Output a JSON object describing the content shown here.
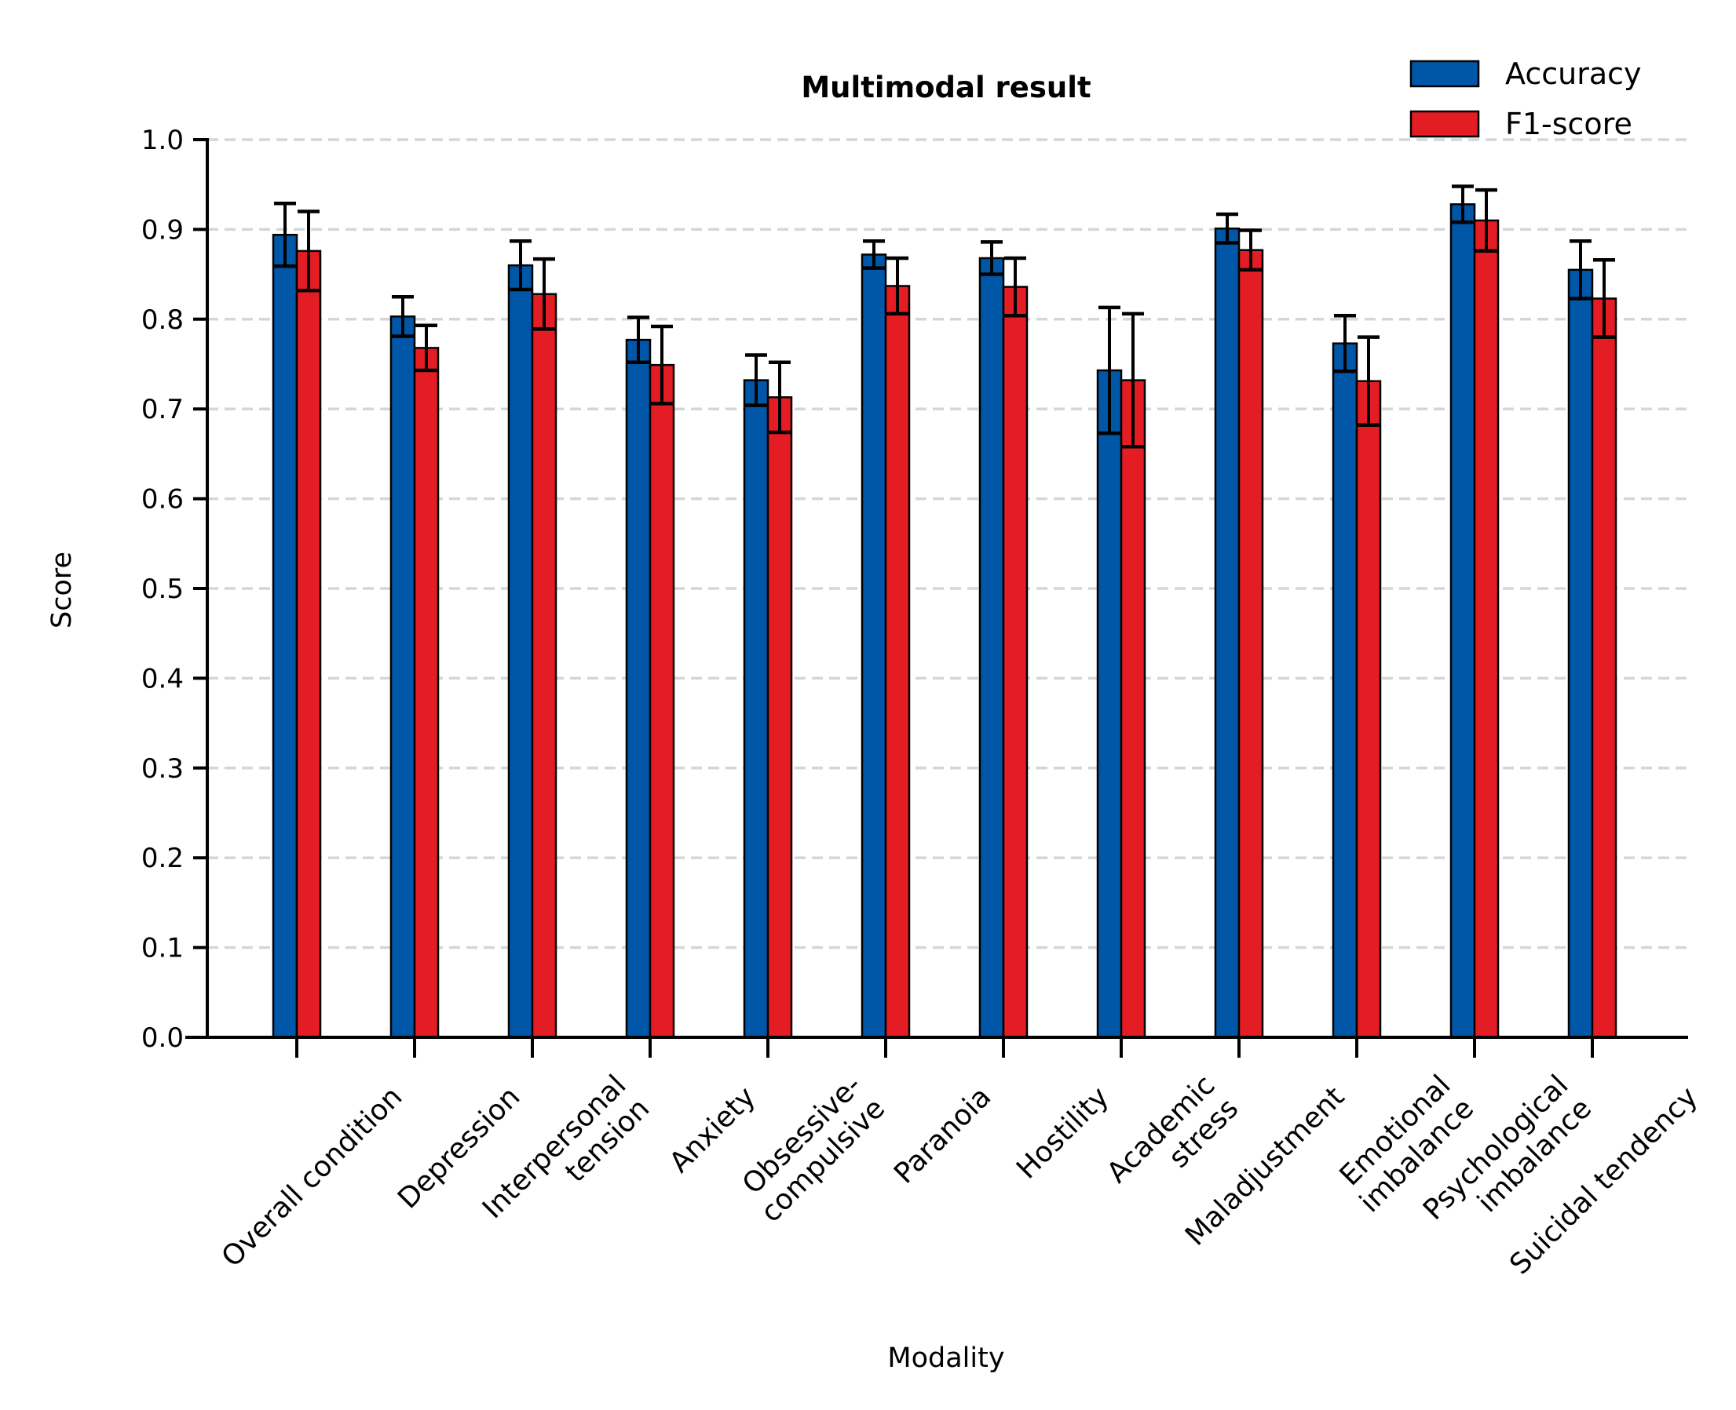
{
  "chart_data": {
    "type": "bar",
    "title": "Multimodal result",
    "xlabel": "Modality",
    "ylabel": "Score",
    "ylim": [
      0,
      1.0
    ],
    "yticks": [
      "0.0",
      "0.1",
      "0.2",
      "0.3",
      "0.4",
      "0.5",
      "0.6",
      "0.7",
      "0.8",
      "0.9",
      "1.0"
    ],
    "grid": "horizontal dashed",
    "legend_position": "top-right",
    "categories": [
      "Overall condition",
      "Depression",
      "Interpersonal\ntension",
      "Anxiety",
      "Obsessive-\ncompulsive",
      "Paranoia",
      "Hostility",
      "Academic\nstress",
      "Maladjustment",
      "Emotional\nimbalance",
      "Psychological\nimbalance",
      "Suicidal tendency"
    ],
    "series": [
      {
        "name": "Accuracy",
        "color": "#0057A8",
        "values": [
          0.894,
          0.803,
          0.86,
          0.777,
          0.732,
          0.872,
          0.868,
          0.743,
          0.901,
          0.773,
          0.928,
          0.855
        ],
        "errors": [
          0.035,
          0.022,
          0.027,
          0.025,
          0.028,
          0.015,
          0.018,
          0.07,
          0.016,
          0.031,
          0.02,
          0.032
        ]
      },
      {
        "name": "F1-score",
        "color": "#E41C23",
        "values": [
          0.876,
          0.768,
          0.828,
          0.749,
          0.713,
          0.837,
          0.836,
          0.732,
          0.877,
          0.731,
          0.91,
          0.823
        ],
        "errors": [
          0.044,
          0.025,
          0.039,
          0.043,
          0.039,
          0.031,
          0.032,
          0.074,
          0.022,
          0.049,
          0.034,
          0.043
        ]
      }
    ]
  }
}
